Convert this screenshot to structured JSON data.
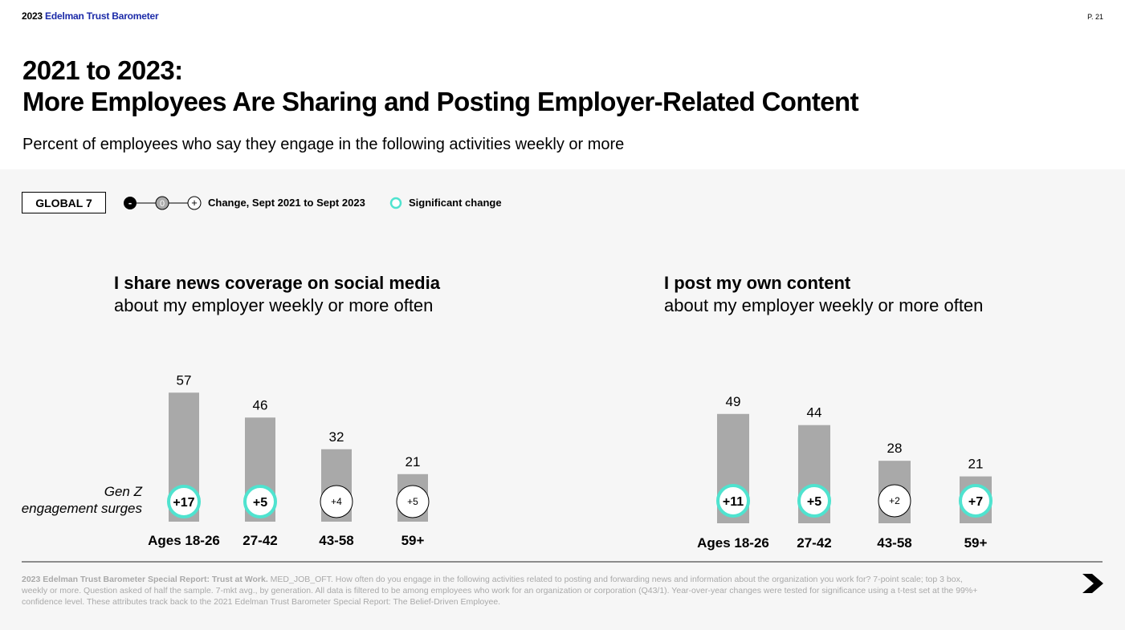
{
  "brand": {
    "year": "2023",
    "name": "Edelman Trust Barometer"
  },
  "page_number": "P. 21",
  "title": {
    "line1": "2021 to 2023:",
    "line2": "More Employees Are Sharing and Posting Employer-Related Content"
  },
  "subtitle": "Percent of employees who say they engage in the following activities weekly or more",
  "global_badge": "GLOBAL 7",
  "legend": {
    "minus": "-",
    "zero": "0",
    "plus": "+",
    "change_label": "Change, Sept 2021 to Sept 2023",
    "significant_label": "Significant change",
    "significant_color": "#4fe3cf"
  },
  "gen_z_note": {
    "line1": "Gen Z",
    "line2": "engagement surges"
  },
  "chart_data": [
    {
      "type": "bar",
      "title_bold": "I share news coverage on social media",
      "title_rest": "about my employer weekly or more often",
      "categories": [
        "Ages 18-26",
        "27-42",
        "43-58",
        "59+"
      ],
      "values": [
        57,
        46,
        32,
        21
      ],
      "changes": [
        "+17",
        "+5",
        "+4",
        "+5"
      ],
      "significant": [
        true,
        true,
        false,
        false
      ],
      "bar_color": "#a9a9a9"
    },
    {
      "type": "bar",
      "title_bold": "I post my own content",
      "title_rest": "about my employer weekly or more often",
      "categories": [
        "Ages 18-26",
        "27-42",
        "43-58",
        "59+"
      ],
      "values": [
        49,
        44,
        28,
        21
      ],
      "changes": [
        "+11",
        "+5",
        "+2",
        "+7"
      ],
      "significant": [
        true,
        true,
        false,
        true
      ],
      "bar_color": "#a9a9a9"
    }
  ],
  "footnote": {
    "source": "2023 Edelman Trust Barometer Special Report: Trust at Work.",
    "text": " MED_JOB_OFT. How often do you engage in the following activities related to posting and forwarding news and information about the organization you work for? 7-point scale; top 3 box, weekly or more. Question asked of half the sample. 7-mkt avg., by generation. All data is filtered to be among employees who work for an organization or corporation (Q43/1). Year-over-year changes were tested for significance using a t-test set at the 99%+ confidence level. These attributes track back to the 2021 Edelman Trust Barometer Special Report: The Belief-Driven Employee."
  }
}
